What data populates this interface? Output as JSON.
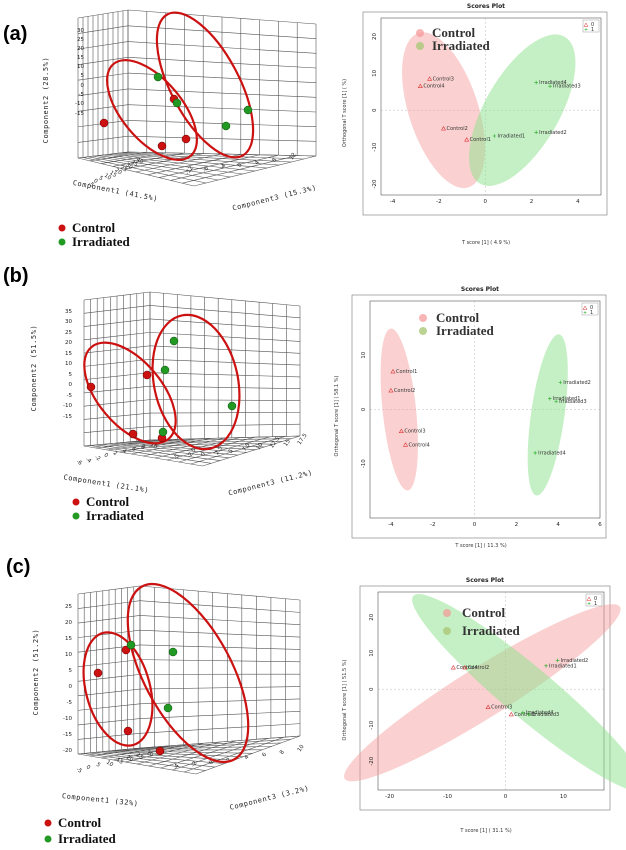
{
  "panels": [
    {
      "label": "(a)",
      "legend": [
        "Control",
        "Irradiated"
      ],
      "colors": {
        "control": "#cc1111",
        "irradiated": "#229922"
      },
      "pca3d": {
        "y_axis_label": "Component2 (28.5%)",
        "x_axis_label": "Component1 (41.5%)",
        "z_axis_label": "Component3 (15.3%)",
        "y_ticks": [
          "30",
          "25",
          "20",
          "15",
          "10",
          "5",
          "0",
          "-5",
          "-10",
          "-15"
        ],
        "x_ticks": [
          "-5",
          "0",
          "5",
          "10",
          "15",
          "20",
          "25",
          "30",
          "35",
          "40"
        ],
        "z_ticks": [
          "-12",
          "-8",
          "-4",
          "0",
          "4",
          "8",
          "12"
        ]
      },
      "scores_plot": {
        "title": "Scores Plot",
        "x_axis_label": "T score [1] ( 4.9 %)",
        "y_axis_label": "Orthogonal T score [1] ( %)",
        "x_ticks": [
          "-4",
          "-2",
          "0",
          "2",
          "4"
        ],
        "y_ticks": [
          "20",
          "10",
          "0",
          "-10",
          "-20"
        ],
        "legend_box": [
          "0",
          "1"
        ],
        "overlay_legend": [
          "Control",
          "Irradiated"
        ],
        "point_labels": [
          "Control3",
          "Control4",
          "Control2",
          "Control1",
          "Irradiated4",
          "Irradiated3",
          "Irradiated1",
          "Irradiated2"
        ]
      }
    },
    {
      "label": "(b)",
      "legend": [
        "Control",
        "Irradiated"
      ],
      "colors": {
        "control": "#cc1111",
        "irradiated": "#229922"
      },
      "pca3d": {
        "y_axis_label": "Component2 (51.5%)",
        "x_axis_label": "Component1 (21.1%)",
        "z_axis_label": "Component3 (11.2%)",
        "y_ticks": [
          "35",
          "30",
          "25",
          "20",
          "15",
          "10",
          "5",
          "0",
          "-5",
          "-10",
          "-15"
        ],
        "x_ticks": [
          "-6",
          "-4",
          "-2",
          "0",
          "2",
          "4",
          "6",
          "8",
          "10"
        ],
        "z_ticks": [
          "-5",
          "-2.5",
          "0",
          "2.5",
          "5",
          "7.5",
          "10",
          "12.5",
          "15",
          "17.5"
        ]
      },
      "scores_plot": {
        "title": "Scores Plot",
        "x_axis_label": "T score [1] ( 11.3 %)",
        "y_axis_label": "Orthogonal T score [1] ( 58.1 %)",
        "x_ticks": [
          "-4",
          "-2",
          "0",
          "2",
          "4",
          "6"
        ],
        "y_ticks": [
          "10",
          "0",
          "-10"
        ],
        "legend_box": [
          "0",
          "1"
        ],
        "overlay_legend": [
          "Control",
          "Irradiated"
        ],
        "point_labels": [
          "Control1",
          "Control2",
          "Control3",
          "Control4",
          "Irradiated2",
          "Irradiated1",
          "Irradiated3",
          "Irradiated4"
        ]
      }
    },
    {
      "label": "(c)",
      "legend": [
        "Control",
        "Irradiated"
      ],
      "colors": {
        "control": "#cc1111",
        "irradiated": "#229922"
      },
      "pca3d": {
        "y_axis_label": "Component2 (51.2%)",
        "x_axis_label": "Component1 (32%)",
        "z_axis_label": "Component3 (3.2%)",
        "y_ticks": [
          "25",
          "20",
          "15",
          "10",
          "5",
          "0",
          "-5",
          "-10",
          "-15",
          "-20"
        ],
        "x_ticks": [
          "-5",
          "0",
          "5",
          "10",
          "15",
          "20",
          "25",
          "30"
        ],
        "z_ticks": [
          "-4",
          "-2",
          "0",
          "2",
          "4",
          "6",
          "8",
          "10"
        ]
      },
      "scores_plot": {
        "title": "Scores Plot",
        "x_axis_label": "T score [1] ( 31.1 %)",
        "y_axis_label": "Orthogonal T score [1] ( 51.5 %)",
        "x_ticks": [
          "-20",
          "-10",
          "0",
          "10"
        ],
        "y_ticks": [
          "20",
          "10",
          "0",
          "-10",
          "-20"
        ],
        "legend_box": [
          "0",
          "1"
        ],
        "overlay_legend": [
          "Control",
          "Irradiated"
        ],
        "point_labels": [
          "Control4",
          "Control2",
          "Control3",
          "Control1",
          "Irradiated2",
          "Irradiated1",
          "Irradiated4",
          "Irradiated3"
        ]
      }
    }
  ],
  "chart_data": [
    {
      "type": "scatter",
      "title": "Scores Plot",
      "xlabel": "T score [1] ( 4.9 %)",
      "ylabel": "Orthogonal T score [1] ( %)",
      "xlim": [
        -4.5,
        5
      ],
      "ylim": [
        -23,
        25
      ],
      "series": [
        {
          "name": "Control",
          "points": [
            {
              "label": "Control3",
              "x": -2.4,
              "y": 8.5
            },
            {
              "label": "Control4",
              "x": -2.8,
              "y": 6.5
            },
            {
              "label": "Control2",
              "x": -1.8,
              "y": -5
            },
            {
              "label": "Control1",
              "x": -0.8,
              "y": -8
            }
          ]
        },
        {
          "name": "Irradiated",
          "points": [
            {
              "label": "Irradiated4",
              "x": 2.2,
              "y": 7.5
            },
            {
              "label": "Irradiated3",
              "x": 2.8,
              "y": 6.5
            },
            {
              "label": "Irradiated1",
              "x": 0.4,
              "y": -7
            },
            {
              "label": "Irradiated2",
              "x": 2.2,
              "y": -6
            }
          ]
        }
      ]
    },
    {
      "type": "scatter",
      "title": "Scores Plot",
      "xlabel": "T score [1] ( 11.3 %)",
      "ylabel": "Orthogonal T score [1] ( 58.1 %)",
      "xlim": [
        -5,
        6
      ],
      "ylim": [
        -20,
        20
      ],
      "series": [
        {
          "name": "Control",
          "points": [
            {
              "label": "Control1",
              "x": -3.9,
              "y": 7
            },
            {
              "label": "Control2",
              "x": -4.0,
              "y": 3.5
            },
            {
              "label": "Control3",
              "x": -3.5,
              "y": -4
            },
            {
              "label": "Control4",
              "x": -3.3,
              "y": -6.5
            }
          ]
        },
        {
          "name": "Irradiated",
          "points": [
            {
              "label": "Irradiated2",
              "x": 4.1,
              "y": 5
            },
            {
              "label": "Irradiated1",
              "x": 3.6,
              "y": 2
            },
            {
              "label": "Irradiated3",
              "x": 3.9,
              "y": 1.5
            },
            {
              "label": "Irradiated4",
              "x": 2.9,
              "y": -8
            }
          ]
        }
      ]
    },
    {
      "type": "scatter",
      "title": "Scores Plot",
      "xlabel": "T score [1] ( 31.1 %)",
      "ylabel": "Orthogonal T score [1] ( 51.5 %)",
      "xlim": [
        -22,
        17
      ],
      "ylim": [
        -28,
        27
      ],
      "series": [
        {
          "name": "Control",
          "points": [
            {
              "label": "Control4",
              "x": -9,
              "y": 6
            },
            {
              "label": "Control2",
              "x": -7,
              "y": 6
            },
            {
              "label": "Control3",
              "x": -3,
              "y": -5
            },
            {
              "label": "Control1",
              "x": 1,
              "y": -7
            }
          ]
        },
        {
          "name": "Irradiated",
          "points": [
            {
              "label": "Irradiated2",
              "x": 9,
              "y": 8
            },
            {
              "label": "Irradiated1",
              "x": 7,
              "y": 6.5
            },
            {
              "label": "Irradiated4",
              "x": 3,
              "y": -6.5
            },
            {
              "label": "Irradiated3",
              "x": 4,
              "y": -7
            }
          ]
        }
      ]
    }
  ]
}
